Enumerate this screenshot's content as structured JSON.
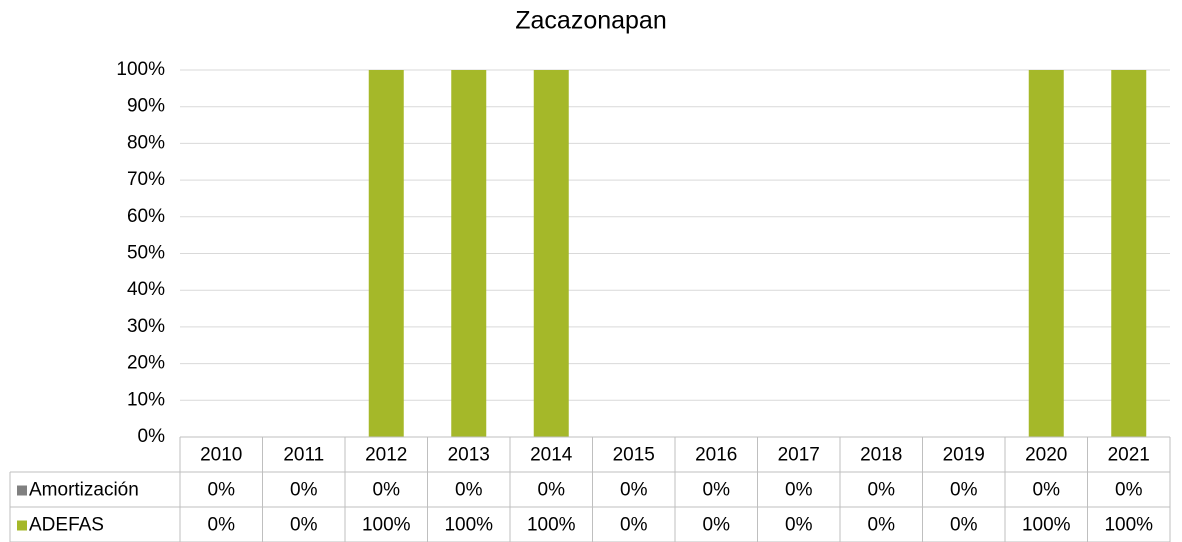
{
  "chart_data": {
    "type": "stacked_bar",
    "title": "Zacazonapan",
    "categories": [
      "2010",
      "2011",
      "2012",
      "2013",
      "2014",
      "2015",
      "2016",
      "2017",
      "2018",
      "2019",
      "2020",
      "2021"
    ],
    "series": [
      {
        "name": "Amortización",
        "color": "#808080",
        "values": [
          0,
          0,
          0,
          0,
          0,
          0,
          0,
          0,
          0,
          0,
          0,
          0
        ],
        "value_labels": [
          "0%",
          "0%",
          "0%",
          "0%",
          "0%",
          "0%",
          "0%",
          "0%",
          "0%",
          "0%",
          "0%",
          "0%"
        ]
      },
      {
        "name": "ADEFAS",
        "color": "#a5b829",
        "values": [
          0,
          0,
          100,
          100,
          100,
          0,
          0,
          0,
          0,
          0,
          100,
          100
        ],
        "value_labels": [
          "0%",
          "0%",
          "100%",
          "100%",
          "100%",
          "0%",
          "0%",
          "0%",
          "0%",
          "0%",
          "100%",
          "100%"
        ]
      }
    ],
    "ylim": [
      0,
      100
    ],
    "yticks": [
      {
        "value": 0,
        "label": "0%"
      },
      {
        "value": 10,
        "label": "10%"
      },
      {
        "value": 20,
        "label": "20%"
      },
      {
        "value": 30,
        "label": "30%"
      },
      {
        "value": 40,
        "label": "40%"
      },
      {
        "value": 50,
        "label": "50%"
      },
      {
        "value": 60,
        "label": "60%"
      },
      {
        "value": 70,
        "label": "70%"
      },
      {
        "value": 80,
        "label": "80%"
      },
      {
        "value": 90,
        "label": "90%"
      },
      {
        "value": 100,
        "label": "100%"
      }
    ],
    "grid": true
  }
}
